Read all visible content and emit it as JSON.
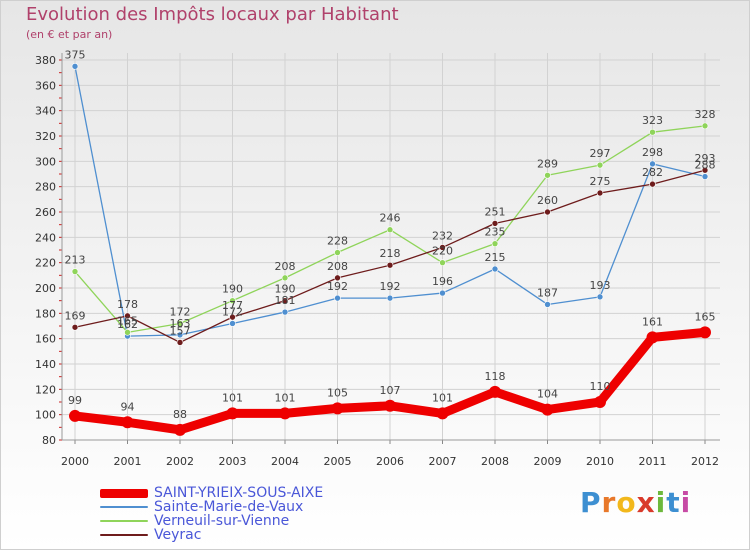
{
  "header": {
    "title": "Evolution des Impôts locaux par Habitant",
    "subtitle": "(en € et par an)"
  },
  "brand": {
    "letters": [
      "P",
      "r",
      "o",
      "x",
      "i",
      "t",
      "i"
    ],
    "colors": [
      "#3d8fd1",
      "#e8782a",
      "#f2b81c",
      "#d93a2b",
      "#6db83c",
      "#3d8fd1",
      "#c74ba5"
    ]
  },
  "chart_data": {
    "type": "line",
    "title": "Evolution des Impôts locaux par Habitant",
    "subtitle": "(en € et par an)",
    "xlabel": "",
    "ylabel": "",
    "ylim": [
      80,
      380
    ],
    "yticks": [
      80,
      100,
      120,
      140,
      160,
      180,
      200,
      220,
      240,
      260,
      280,
      300,
      320,
      340,
      360,
      380
    ],
    "grid": true,
    "categories": [
      "2000",
      "2001",
      "2002",
      "2003",
      "2004",
      "2005",
      "2006",
      "2007",
      "2008",
      "2009",
      "2010",
      "2011",
      "2012"
    ],
    "series": [
      {
        "name": "Sainte-Marie-de-Vaux",
        "color": "#4f8fd0",
        "values": [
          375,
          162,
          163,
          172,
          181,
          192,
          192,
          196,
          215,
          187,
          193,
          298,
          288
        ]
      },
      {
        "name": "Verneuil-sur-Vienne",
        "color": "#8fd45a",
        "values": [
          213,
          165,
          172,
          190,
          208,
          228,
          246,
          220,
          235,
          289,
          297,
          323,
          328
        ]
      },
      {
        "name": "Veyrac",
        "color": "#6e1c1c",
        "values": [
          169,
          178,
          157,
          177,
          190,
          208,
          218,
          232,
          251,
          260,
          275,
          282,
          293
        ]
      },
      {
        "name": "SAINT-YRIEIX-SOUS-AIXE",
        "color": "#ee0000",
        "values": [
          99,
          94,
          88,
          101,
          101,
          105,
          107,
          101,
          118,
          104,
          110,
          161,
          165
        ]
      }
    ],
    "data_labels": {
      "Sainte-Marie-de-Vaux": [
        "375",
        "162",
        "163",
        "172",
        "181",
        "192",
        "192",
        "196",
        "215",
        "187",
        "193",
        "298",
        "288"
      ],
      "Verneuil-sur-Vienne": [
        "213",
        "165",
        "172",
        "190",
        "208",
        "228",
        "246",
        "220",
        "235",
        "289",
        "297",
        "323",
        "328"
      ],
      "Veyrac": [
        "169",
        "178",
        "157",
        "177",
        "190",
        "208",
        "218",
        "232",
        "251",
        "260",
        "275",
        "282",
        "293"
      ],
      "SAINT-YRIEIX-SOUS-AIXE": [
        "99",
        "94",
        "88",
        "101",
        "101",
        "105",
        "107",
        "101",
        "118",
        "104",
        "110",
        "161",
        "165"
      ]
    },
    "legend": [
      {
        "label": "SAINT-YRIEIX-SOUS-AIXE",
        "color": "#ee0000",
        "style": "thick"
      },
      {
        "label": "Sainte-Marie-de-Vaux",
        "color": "#4f8fd0",
        "style": "thin"
      },
      {
        "label": "Verneuil-sur-Vienne",
        "color": "#8fd45a",
        "style": "thin"
      },
      {
        "label": "Veyrac",
        "color": "#6e1c1c",
        "style": "thin"
      }
    ],
    "legend_position": "bottom-left"
  }
}
